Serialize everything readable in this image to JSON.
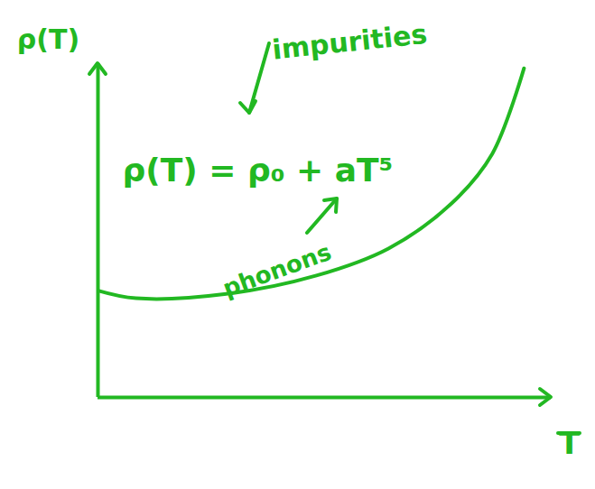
{
  "chart_data": {
    "type": "line",
    "x_label": "T",
    "y_label": "ρ(T)",
    "annotations": [
      "ρ(T) = ρ₀ + aT⁵",
      "impurities",
      "phonons"
    ],
    "x": [
      0,
      0.84,
      2.83,
      4.82,
      6.41,
      7.8,
      8.7,
      9.4
    ],
    "values": [
      3.2,
      2.97,
      3.1,
      3.65,
      4.46,
      5.81,
      7.3,
      9.86
    ],
    "color": "#22b822",
    "xlim": [
      0,
      10
    ],
    "ylim": [
      0,
      10
    ],
    "xticks": [],
    "yticks": [],
    "grid": false,
    "tick_labels": false
  }
}
